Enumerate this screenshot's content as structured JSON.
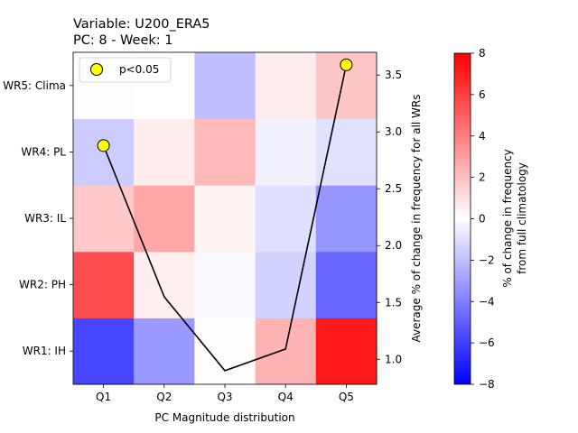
{
  "chart_data": {
    "type": "heatmap",
    "title_line1": "Variable: U200_ERA5",
    "title_line2": "PC: 8 - Week: 1",
    "xlabel": "PC Magnitude distribution",
    "categories": [
      "Q1",
      "Q2",
      "Q3",
      "Q4",
      "Q5"
    ],
    "rows": [
      "WR1: IH",
      "WR2: PH",
      "WR3: IL",
      "WR4: PL",
      "WR5: Clima"
    ],
    "values": [
      [
        -5.8,
        -3.2,
        0.1,
        2.4,
        7.2
      ],
      [
        5.6,
        0.5,
        -0.2,
        -1.4,
        -4.8
      ],
      [
        1.7,
        2.8,
        0.3,
        -1.0,
        -3.3
      ],
      [
        -1.6,
        0.6,
        2.2,
        -0.4,
        -0.9
      ],
      [
        0.1,
        0.0,
        -2.0,
        0.6,
        1.8
      ]
    ],
    "clim": [
      -8,
      8
    ],
    "colormap": "bwr",
    "colorbar_label_line1": "% of change in frequency",
    "colorbar_label_line2": "from full climatology",
    "colorbar_ticks": [
      "−8",
      "−6",
      "−4",
      "−2",
      "0",
      "2",
      "4",
      "6",
      "8"
    ],
    "line": {
      "y_label": "Average % of change in frequency for all WRs",
      "y_ticks": [
        "1.0",
        "1.5",
        "2.0",
        "2.5",
        "3.0",
        "3.5"
      ],
      "ylim": [
        0.78,
        3.7
      ],
      "values": [
        2.88,
        1.55,
        0.9,
        1.09,
        3.59
      ],
      "significant": [
        true,
        false,
        false,
        false,
        true
      ],
      "color": "#000000"
    },
    "legend": {
      "label": "p<0.05",
      "marker_color": "#ffff00",
      "position": "upper-left"
    }
  }
}
